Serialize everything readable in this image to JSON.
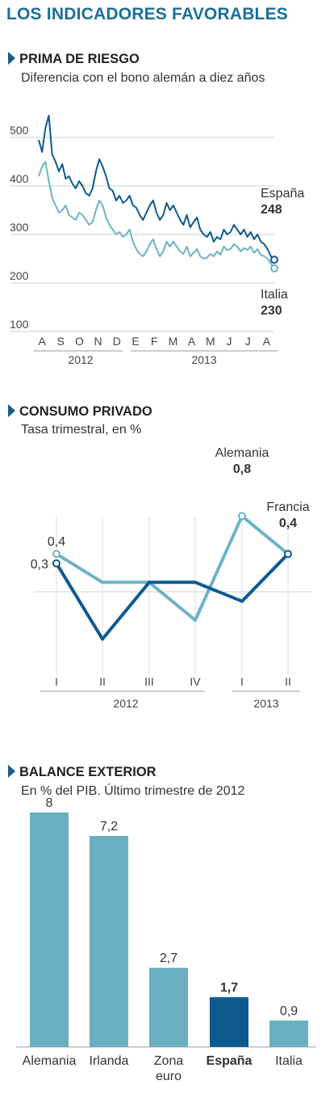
{
  "header": {
    "title": "LOS INDICADORES FAVORABLES"
  },
  "colors": {
    "dark_blue": "#0d5a91",
    "light_blue": "#6db3c6",
    "bar_blue": "#6aafc1",
    "grid": "#cfcfcf"
  },
  "sections": {
    "prima": {
      "title": "PRIMA DE RIESGO",
      "subtitle": "Diferencia con el bono alemán a diez años"
    },
    "consumo": {
      "title": "CONSUMO PRIVADO",
      "subtitle": "Tasa trimestral, en %"
    },
    "balance": {
      "title": "BALANCE EXTERIOR",
      "subtitle": "En % del PIB. Último trimestre de 2012"
    }
  },
  "chart_data": [
    {
      "type": "line",
      "ylim": [
        100,
        550
      ],
      "yticks": [
        "500",
        "400",
        "300",
        "200",
        "100"
      ],
      "month_labels": [
        "A",
        "S",
        "O",
        "N",
        "D",
        "E",
        "F",
        "M",
        "A",
        "M",
        "J",
        "J",
        "A"
      ],
      "year_labels": [
        "2012",
        "2013"
      ],
      "series": [
        {
          "name": "España",
          "end_value": "248",
          "color": "#0d5a91",
          "values": [
            495,
            470,
            520,
            545,
            465,
            450,
            430,
            445,
            415,
            420,
            405,
            395,
            410,
            400,
            385,
            380,
            395,
            430,
            455,
            440,
            420,
            395,
            390,
            370,
            380,
            365,
            370,
            380,
            360,
            355,
            340,
            330,
            345,
            360,
            370,
            345,
            330,
            340,
            365,
            350,
            360,
            345,
            330,
            320,
            340,
            315,
            325,
            335,
            310,
            300,
            295,
            305,
            285,
            295,
            290,
            310,
            300,
            305,
            320,
            310,
            300,
            310,
            295,
            305,
            290,
            300,
            285,
            280,
            270,
            255,
            248
          ]
        },
        {
          "name": "Italia",
          "end_value": "230",
          "color": "#6db3c6",
          "values": [
            420,
            440,
            450,
            410,
            375,
            360,
            345,
            350,
            360,
            340,
            335,
            330,
            345,
            340,
            330,
            320,
            325,
            350,
            370,
            360,
            335,
            320,
            310,
            300,
            305,
            295,
            300,
            310,
            285,
            270,
            260,
            255,
            265,
            280,
            290,
            270,
            255,
            265,
            285,
            275,
            285,
            275,
            265,
            260,
            275,
            255,
            262,
            270,
            255,
            250,
            252,
            260,
            255,
            265,
            258,
            275,
            268,
            270,
            280,
            275,
            265,
            272,
            268,
            275,
            262,
            270,
            258,
            255,
            250,
            240,
            230
          ]
        }
      ]
    },
    {
      "type": "line",
      "categories": [
        "I",
        "II",
        "III",
        "IV",
        "I",
        "II"
      ],
      "year_labels": [
        "2012",
        "2013"
      ],
      "series": [
        {
          "name": "Alemania",
          "color": "#6db3c6",
          "values": [
            0.4,
            0.1,
            0.1,
            -0.3,
            0.8,
            0.4
          ],
          "labels": [
            "0,4",
            "0,8"
          ]
        },
        {
          "name": "Francia",
          "color": "#0d5a91",
          "values": [
            0.3,
            -0.5,
            0.1,
            0.1,
            -0.1,
            0.4
          ],
          "labels": [
            "0,3",
            "0,4"
          ]
        }
      ]
    },
    {
      "type": "bar",
      "categories": [
        "Alemania",
        "Irlanda",
        "Zona euro",
        "España",
        "Italia"
      ],
      "category_lines": [
        [
          "Alemania"
        ],
        [
          "Irlanda"
        ],
        [
          "Zona",
          "euro"
        ],
        [
          "España"
        ],
        [
          "Italia"
        ]
      ],
      "values": [
        8,
        7.2,
        2.7,
        1.7,
        0.9
      ],
      "value_labels": [
        "8",
        "7,2",
        "2,7",
        "1,7",
        "0,9"
      ],
      "highlight": "España",
      "colors": {
        "default": "#6aafc1",
        "highlight": "#0d5a91"
      }
    }
  ]
}
